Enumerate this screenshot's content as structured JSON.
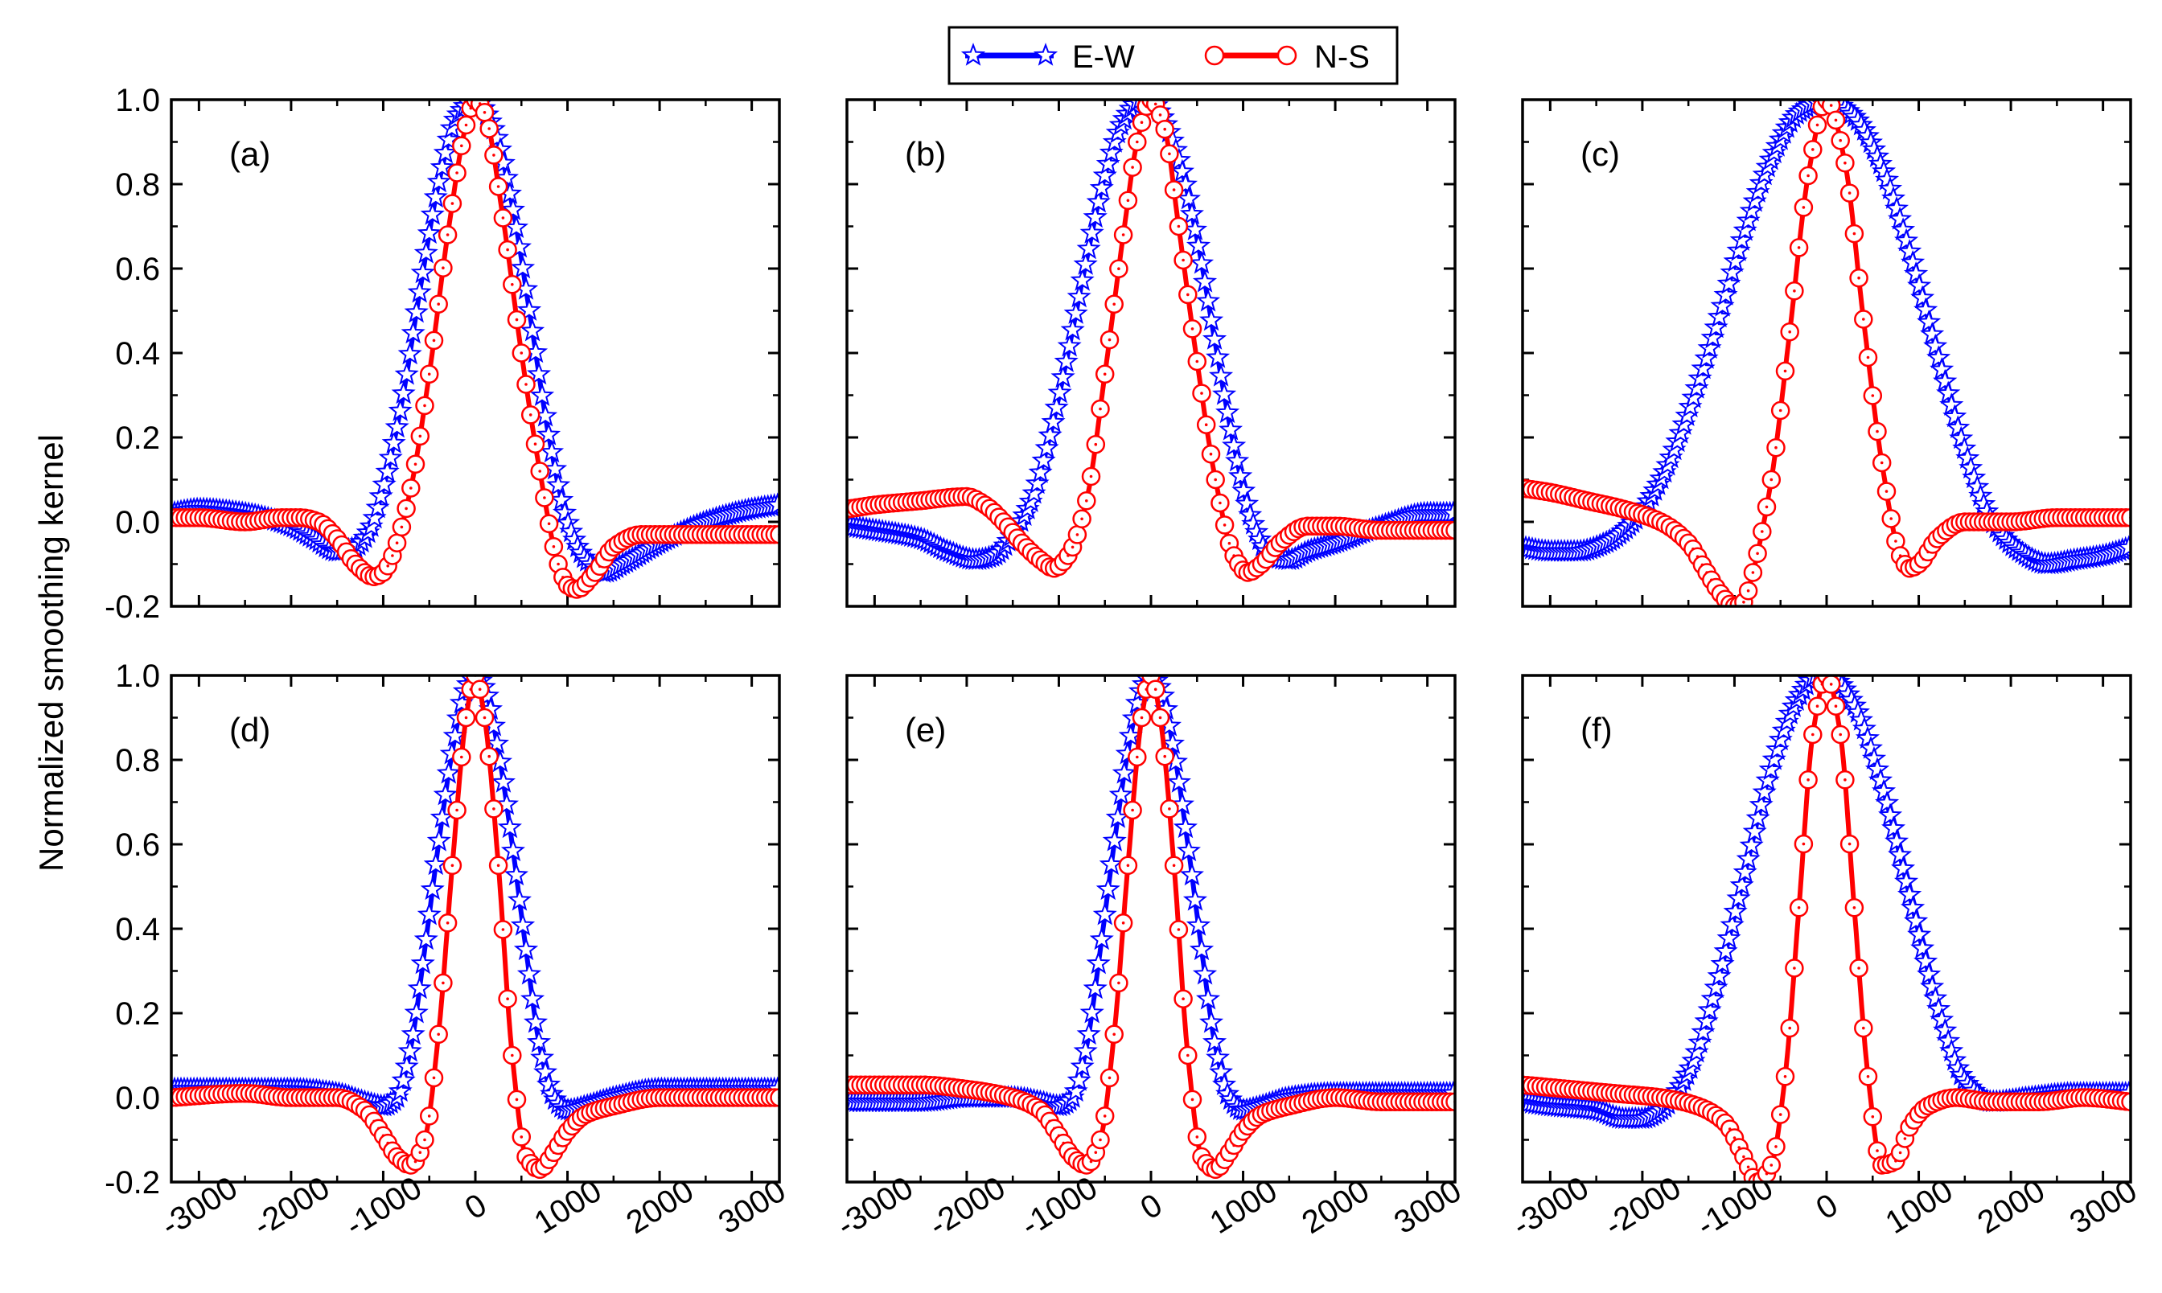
{
  "figure": {
    "ylabel": "Normalized smoothing kernel",
    "legend": [
      {
        "label": "E-W",
        "color": "#0000ff",
        "marker": "star-icon"
      },
      {
        "label": "N-S",
        "color": "#ff0000",
        "marker": "open-circle-icon"
      }
    ]
  },
  "chart_data": [
    {
      "type": "line",
      "panel_label": "(a)",
      "xlim": [
        -3300,
        3300
      ],
      "ylim": [
        -0.2,
        1.0
      ],
      "xticks": [
        "-3000",
        "-2000",
        "-1000",
        "0",
        "1000",
        "2000",
        "3000"
      ],
      "yticks": [
        "-0.2",
        "0.0",
        "0.2",
        "0.4",
        "0.6",
        "0.8",
        "1.0"
      ],
      "series": [
        {
          "name": "E-W",
          "color": "#0000ff",
          "x": [
            -3300,
            -3000,
            -2500,
            -2000,
            -1750,
            -1500,
            -1300,
            -1150,
            -1000,
            -800,
            -600,
            -400,
            -200,
            0,
            200,
            400,
            600,
            800,
            1000,
            1200,
            1400,
            1600,
            2000,
            2500,
            3000,
            3300
          ],
          "values": [
            0.02,
            0.03,
            0.02,
            -0.01,
            -0.04,
            -0.07,
            -0.06,
            -0.02,
            0.08,
            0.28,
            0.55,
            0.8,
            0.96,
            1.0,
            0.93,
            0.75,
            0.48,
            0.2,
            0.0,
            -0.09,
            -0.12,
            -0.1,
            -0.05,
            0.0,
            0.03,
            0.04
          ]
        },
        {
          "name": "N-S",
          "color": "#ff0000",
          "x": [
            -3300,
            -3000,
            -2500,
            -2100,
            -1900,
            -1700,
            -1500,
            -1300,
            -1100,
            -1000,
            -900,
            -700,
            -500,
            -300,
            -100,
            0,
            100,
            300,
            500,
            700,
            900,
            1000,
            1100,
            1300,
            1500,
            1800,
            2200,
            2700,
            3300
          ],
          "values": [
            0.01,
            0.01,
            0.0,
            0.01,
            0.01,
            0.0,
            -0.04,
            -0.1,
            -0.13,
            -0.12,
            -0.08,
            0.08,
            0.35,
            0.68,
            0.94,
            1.0,
            0.97,
            0.72,
            0.4,
            0.12,
            -0.1,
            -0.15,
            -0.16,
            -0.12,
            -0.06,
            -0.03,
            -0.03,
            -0.03,
            -0.03
          ]
        }
      ]
    },
    {
      "type": "line",
      "panel_label": "(b)",
      "xlim": [
        -3300,
        3300
      ],
      "ylim": [
        -0.2,
        1.0
      ],
      "xticks": [
        "-3000",
        "-2000",
        "-1000",
        "0",
        "1000",
        "2000",
        "3000"
      ],
      "yticks": [
        "-0.2",
        "0.0",
        "0.2",
        "0.4",
        "0.6",
        "0.8",
        "1.0"
      ],
      "series": [
        {
          "name": "E-W",
          "color": "#0000ff",
          "x": [
            -3300,
            -3000,
            -2500,
            -2200,
            -1900,
            -1700,
            -1500,
            -1300,
            -1100,
            -900,
            -700,
            -500,
            -300,
            -100,
            0,
            100,
            300,
            500,
            700,
            900,
            1100,
            1300,
            1500,
            1700,
            2000,
            2500,
            3000,
            3300
          ],
          "values": [
            -0.01,
            -0.02,
            -0.04,
            -0.07,
            -0.09,
            -0.08,
            -0.03,
            0.05,
            0.2,
            0.4,
            0.62,
            0.82,
            0.95,
            1.0,
            1.0,
            0.97,
            0.86,
            0.67,
            0.42,
            0.18,
            0.0,
            -0.08,
            -0.09,
            -0.07,
            -0.05,
            -0.01,
            0.02,
            0.02
          ]
        },
        {
          "name": "N-S",
          "color": "#ff0000",
          "x": [
            -3300,
            -3000,
            -2500,
            -2000,
            -1800,
            -1600,
            -1400,
            -1200,
            -1050,
            -900,
            -700,
            -500,
            -300,
            -150,
            0,
            150,
            300,
            500,
            700,
            900,
            1050,
            1200,
            1400,
            1700,
            2000,
            2500,
            3000,
            3300
          ],
          "values": [
            0.03,
            0.04,
            0.05,
            0.06,
            0.04,
            0.0,
            -0.05,
            -0.09,
            -0.11,
            -0.08,
            0.05,
            0.35,
            0.68,
            0.9,
            1.0,
            0.93,
            0.7,
            0.38,
            0.1,
            -0.08,
            -0.12,
            -0.1,
            -0.05,
            -0.01,
            -0.01,
            -0.02,
            -0.02,
            -0.02
          ]
        }
      ]
    },
    {
      "type": "line",
      "panel_label": "(c)",
      "xlim": [
        -3300,
        3300
      ],
      "ylim": [
        -0.2,
        1.0
      ],
      "xticks": [
        "-3000",
        "-2000",
        "-1000",
        "0",
        "1000",
        "2000",
        "3000"
      ],
      "yticks": [
        "-0.2",
        "0.0",
        "0.2",
        "0.4",
        "0.6",
        "0.8",
        "1.0"
      ],
      "series": [
        {
          "name": "E-W",
          "color": "#0000ff",
          "x": [
            -3300,
            -3000,
            -2700,
            -2400,
            -2100,
            -1800,
            -1500,
            -1200,
            -900,
            -600,
            -300,
            0,
            300,
            600,
            900,
            1200,
            1500,
            1800,
            2100,
            2400,
            2700,
            3000,
            3300
          ],
          "values": [
            -0.06,
            -0.07,
            -0.07,
            -0.05,
            0.0,
            0.1,
            0.26,
            0.46,
            0.68,
            0.86,
            0.97,
            1.0,
            0.96,
            0.84,
            0.64,
            0.4,
            0.17,
            0.0,
            -0.07,
            -0.1,
            -0.09,
            -0.08,
            -0.06
          ]
        },
        {
          "name": "N-S",
          "color": "#ff0000",
          "x": [
            -3300,
            -3000,
            -2600,
            -2200,
            -1800,
            -1500,
            -1300,
            -1150,
            -1000,
            -900,
            -800,
            -600,
            -400,
            -200,
            0,
            200,
            400,
            600,
            800,
            900,
            1000,
            1200,
            1500,
            2000,
            2500,
            3000,
            3300
          ],
          "values": [
            0.08,
            0.07,
            0.05,
            0.03,
            0.0,
            -0.05,
            -0.12,
            -0.17,
            -0.2,
            -0.19,
            -0.12,
            0.1,
            0.45,
            0.82,
            1.0,
            0.85,
            0.48,
            0.14,
            -0.08,
            -0.11,
            -0.1,
            -0.04,
            0.0,
            0.0,
            0.01,
            0.01,
            0.01
          ]
        }
      ]
    },
    {
      "type": "line",
      "panel_label": "(d)",
      "xlim": [
        -3300,
        3300
      ],
      "ylim": [
        -0.2,
        1.0
      ],
      "xticks": [
        "-3000",
        "-2000",
        "-1000",
        "0",
        "1000",
        "2000",
        "3000"
      ],
      "yticks": [
        "-0.2",
        "0.0",
        "0.2",
        "0.4",
        "0.6",
        "0.8",
        "1.0"
      ],
      "series": [
        {
          "name": "E-W",
          "color": "#0000ff",
          "x": [
            -3300,
            -2500,
            -2000,
            -1500,
            -1200,
            -1000,
            -850,
            -700,
            -550,
            -400,
            -250,
            -100,
            0,
            100,
            250,
            400,
            550,
            700,
            850,
            1000,
            1200,
            1500,
            2000,
            2500,
            3300
          ],
          "values": [
            0.02,
            0.02,
            0.02,
            0.01,
            -0.01,
            -0.02,
            0.0,
            0.12,
            0.35,
            0.6,
            0.82,
            0.97,
            1.0,
            0.97,
            0.82,
            0.6,
            0.35,
            0.12,
            0.0,
            -0.03,
            -0.02,
            0.0,
            0.02,
            0.02,
            0.02
          ]
        },
        {
          "name": "N-S",
          "color": "#ff0000",
          "x": [
            -3300,
            -2500,
            -2000,
            -1500,
            -1200,
            -1000,
            -850,
            -700,
            -550,
            -400,
            -250,
            -100,
            0,
            100,
            250,
            400,
            550,
            700,
            850,
            1000,
            1200,
            1500,
            2000,
            2500,
            3300
          ],
          "values": [
            0.0,
            0.01,
            0.0,
            0.0,
            -0.03,
            -0.09,
            -0.14,
            -0.16,
            -0.1,
            0.15,
            0.55,
            0.9,
            1.0,
            0.9,
            0.55,
            0.1,
            -0.14,
            -0.17,
            -0.13,
            -0.08,
            -0.04,
            -0.02,
            0.0,
            0.0,
            0.0
          ]
        }
      ]
    },
    {
      "type": "line",
      "panel_label": "(e)",
      "xlim": [
        -3300,
        3300
      ],
      "ylim": [
        -0.2,
        1.0
      ],
      "xticks": [
        "-3000",
        "-2000",
        "-1000",
        "0",
        "1000",
        "2000",
        "3000"
      ],
      "yticks": [
        "-0.2",
        "0.0",
        "0.2",
        "0.4",
        "0.6",
        "0.8",
        "1.0"
      ],
      "series": [
        {
          "name": "E-W",
          "color": "#0000ff",
          "x": [
            -3300,
            -2500,
            -2000,
            -1500,
            -1200,
            -1000,
            -850,
            -700,
            -550,
            -400,
            -250,
            -100,
            0,
            100,
            250,
            400,
            550,
            700,
            850,
            1000,
            1200,
            1500,
            2000,
            2500,
            3300
          ],
          "values": [
            -0.01,
            -0.01,
            0.0,
            0.0,
            -0.01,
            -0.02,
            0.0,
            0.12,
            0.35,
            0.6,
            0.82,
            0.97,
            1.0,
            0.97,
            0.82,
            0.6,
            0.35,
            0.12,
            0.0,
            -0.03,
            -0.02,
            0.0,
            0.01,
            0.01,
            0.01
          ]
        },
        {
          "name": "N-S",
          "color": "#ff0000",
          "x": [
            -3300,
            -2500,
            -2000,
            -1500,
            -1200,
            -1000,
            -850,
            -700,
            -550,
            -400,
            -250,
            -100,
            0,
            100,
            250,
            400,
            550,
            700,
            850,
            1000,
            1200,
            1500,
            2000,
            2500,
            3300
          ],
          "values": [
            0.03,
            0.03,
            0.02,
            0.0,
            -0.03,
            -0.09,
            -0.14,
            -0.16,
            -0.1,
            0.15,
            0.55,
            0.9,
            1.0,
            0.9,
            0.55,
            0.1,
            -0.14,
            -0.17,
            -0.13,
            -0.08,
            -0.04,
            -0.02,
            0.0,
            -0.01,
            -0.01
          ]
        }
      ]
    },
    {
      "type": "line",
      "panel_label": "(f)",
      "xlim": [
        -3300,
        3300
      ],
      "ylim": [
        -0.2,
        1.0
      ],
      "xticks": [
        "-3000",
        "-2000",
        "-1000",
        "0",
        "1000",
        "2000",
        "3000"
      ],
      "yticks": [
        "-0.2",
        "0.0",
        "0.2",
        "0.4",
        "0.6",
        "0.8",
        "1.0"
      ],
      "series": [
        {
          "name": "E-W",
          "color": "#0000ff",
          "x": [
            -3300,
            -3000,
            -2500,
            -2200,
            -2000,
            -1800,
            -1500,
            -1200,
            -900,
            -600,
            -300,
            -100,
            0,
            100,
            300,
            600,
            900,
            1200,
            1500,
            1800,
            2200,
            2700,
            3300
          ],
          "values": [
            -0.01,
            -0.02,
            -0.03,
            -0.05,
            -0.05,
            -0.03,
            0.06,
            0.26,
            0.52,
            0.78,
            0.95,
            1.0,
            1.0,
            0.99,
            0.93,
            0.74,
            0.48,
            0.22,
            0.04,
            -0.01,
            0.0,
            0.01,
            0.01
          ]
        },
        {
          "name": "N-S",
          "color": "#ff0000",
          "x": [
            -3300,
            -2800,
            -2300,
            -1800,
            -1400,
            -1100,
            -900,
            -750,
            -600,
            -450,
            -300,
            -150,
            0,
            150,
            300,
            450,
            600,
            750,
            900,
            1100,
            1400,
            1800,
            2300,
            2800,
            3300
          ],
          "values": [
            0.03,
            0.02,
            0.01,
            0.0,
            -0.02,
            -0.06,
            -0.14,
            -0.2,
            -0.16,
            0.05,
            0.45,
            0.86,
            1.0,
            0.86,
            0.45,
            0.05,
            -0.16,
            -0.15,
            -0.07,
            -0.02,
            0.0,
            -0.01,
            -0.01,
            0.0,
            -0.01
          ]
        }
      ]
    }
  ]
}
